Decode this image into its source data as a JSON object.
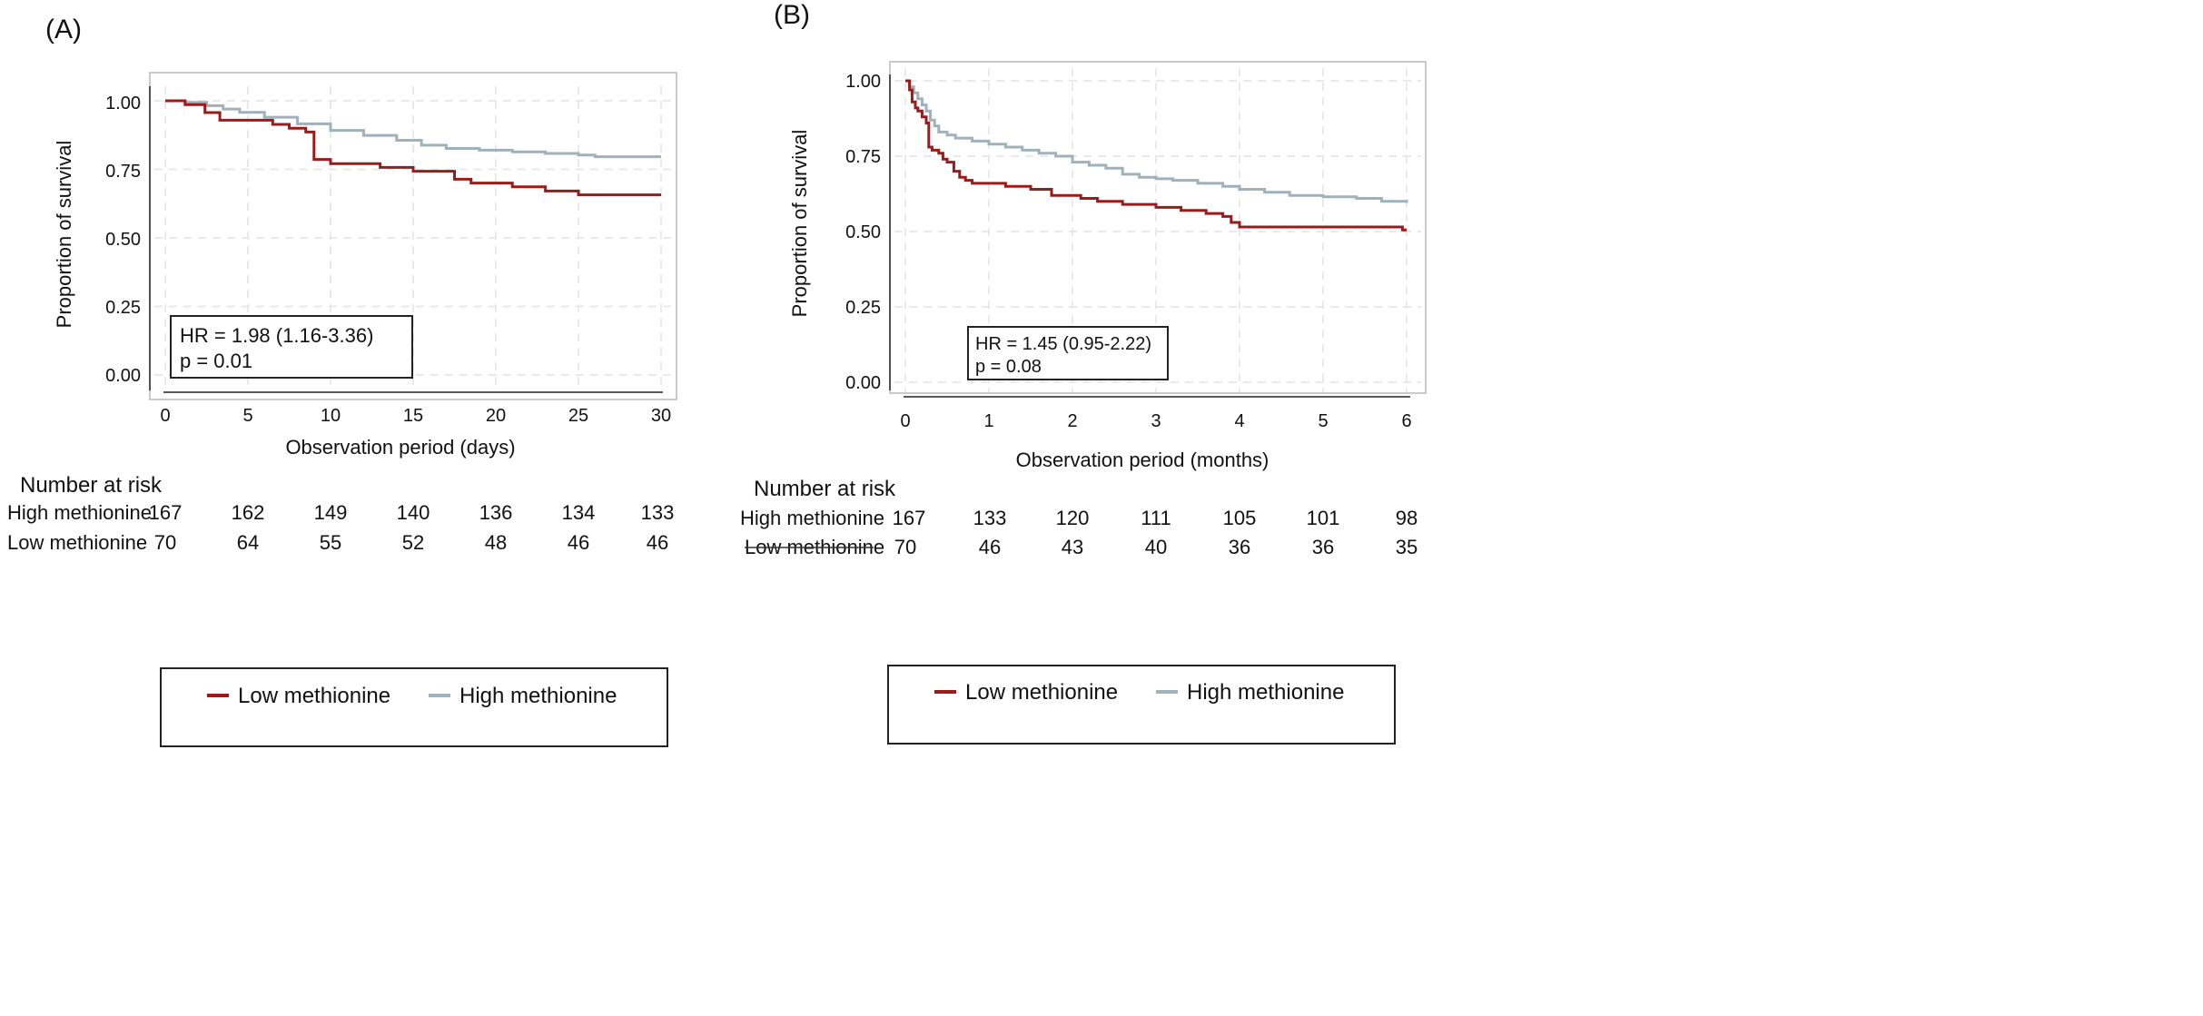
{
  "figure": {
    "legend": {
      "low_label": "Low methionine",
      "high_label": "High methionine"
    },
    "risk_table_title": "Number at risk",
    "colors": {
      "low": "#9b1b1b",
      "high": "#9fb1bb"
    }
  },
  "chart_data": [
    {
      "type": "line",
      "panel_label": "(A)",
      "xlabel": "Observation period (days)",
      "ylabel": "Proportion of survival",
      "xlim": [
        0,
        30
      ],
      "ylim": [
        0,
        1
      ],
      "xticks": [
        "0",
        "5",
        "10",
        "15",
        "20",
        "25",
        "30"
      ],
      "yticks": [
        "0.00",
        "0.25",
        "0.50",
        "0.75",
        "1.00"
      ],
      "grid": true,
      "annotation": {
        "hr": "HR = 1.98 (1.16-3.36)",
        "p": "p = 0.01"
      },
      "series": [
        {
          "name": "Low methionine",
          "x": [
            0,
            1.2,
            2.4,
            3.3,
            6.5,
            7.5,
            8.5,
            9,
            10,
            13,
            15,
            17.5,
            18.5,
            21,
            23,
            25,
            30
          ],
          "y": [
            1.0,
            0.986,
            0.957,
            0.929,
            0.914,
            0.9,
            0.886,
            0.786,
            0.771,
            0.757,
            0.743,
            0.714,
            0.7,
            0.686,
            0.671,
            0.657,
            0.657
          ]
        },
        {
          "name": "High methionine",
          "x": [
            0,
            1.2,
            2.5,
            3.5,
            4.5,
            6,
            8,
            10,
            12,
            14,
            15.5,
            17,
            19,
            21,
            23,
            25,
            26,
            30
          ],
          "y": [
            1.0,
            0.994,
            0.982,
            0.97,
            0.958,
            0.94,
            0.916,
            0.892,
            0.874,
            0.856,
            0.838,
            0.826,
            0.82,
            0.814,
            0.808,
            0.802,
            0.796,
            0.796
          ]
        }
      ],
      "risk_table": {
        "rows": [
          {
            "label": "High methionine",
            "values": [
              "167",
              "162",
              "149",
              "140",
              "136",
              "134",
              "133"
            ]
          },
          {
            "label": "Low methionine",
            "values": [
              "70",
              "64",
              "55",
              "52",
              "48",
              "46",
              "46"
            ]
          }
        ]
      }
    },
    {
      "type": "line",
      "panel_label": "(B)",
      "xlabel": "Observation period (months)",
      "ylabel": "Proportion of survival",
      "xlim": [
        0,
        6
      ],
      "ylim": [
        0,
        1
      ],
      "xticks": [
        "0",
        "1",
        "2",
        "3",
        "4",
        "5",
        "6"
      ],
      "yticks": [
        "0.00",
        "0.25",
        "0.50",
        "0.75",
        "1.00"
      ],
      "grid": true,
      "annotation": {
        "hr": "HR = 1.45 (0.95-2.22)",
        "p": "p = 0.08"
      },
      "series": [
        {
          "name": "Low methionine",
          "x": [
            0,
            0.05,
            0.08,
            0.12,
            0.15,
            0.2,
            0.25,
            0.28,
            0.32,
            0.4,
            0.45,
            0.5,
            0.58,
            0.65,
            0.72,
            0.8,
            1.0,
            1.2,
            1.5,
            1.75,
            2.1,
            2.3,
            2.6,
            3.0,
            3.3,
            3.6,
            3.8,
            3.9,
            4.0,
            5.5,
            5.95,
            6.0
          ],
          "y": [
            1.0,
            0.97,
            0.93,
            0.91,
            0.9,
            0.88,
            0.86,
            0.78,
            0.77,
            0.76,
            0.74,
            0.73,
            0.7,
            0.68,
            0.67,
            0.66,
            0.66,
            0.65,
            0.64,
            0.62,
            0.61,
            0.6,
            0.59,
            0.58,
            0.57,
            0.56,
            0.55,
            0.53,
            0.515,
            0.515,
            0.505,
            0.505
          ]
        },
        {
          "name": "High methionine",
          "x": [
            0,
            0.05,
            0.1,
            0.15,
            0.2,
            0.25,
            0.3,
            0.35,
            0.4,
            0.5,
            0.6,
            0.8,
            1.0,
            1.2,
            1.4,
            1.6,
            1.8,
            2.0,
            2.2,
            2.4,
            2.6,
            2.8,
            3.0,
            3.2,
            3.5,
            3.8,
            4.0,
            4.3,
            4.6,
            5.0,
            5.4,
            5.7,
            6.0
          ],
          "y": [
            1.0,
            0.98,
            0.96,
            0.94,
            0.92,
            0.9,
            0.87,
            0.85,
            0.83,
            0.82,
            0.81,
            0.8,
            0.79,
            0.78,
            0.77,
            0.76,
            0.75,
            0.73,
            0.72,
            0.71,
            0.69,
            0.68,
            0.675,
            0.67,
            0.66,
            0.65,
            0.64,
            0.63,
            0.62,
            0.615,
            0.61,
            0.6,
            0.595
          ]
        }
      ],
      "risk_table": {
        "rows": [
          {
            "label": "High methionine",
            "values": [
              "167",
              "133",
              "120",
              "111",
              "105",
              "101",
              "98"
            ]
          },
          {
            "label": "Low methionine",
            "values": [
              "70",
              "46",
              "43",
              "40",
              "36",
              "36",
              "35"
            ]
          }
        ]
      }
    }
  ]
}
